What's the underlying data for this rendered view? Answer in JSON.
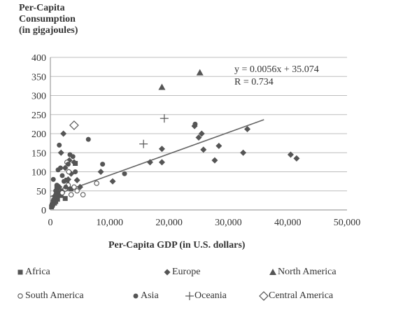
{
  "chart_data": {
    "type": "scatter",
    "title": "",
    "ylabel_lines": [
      "Per-Capita",
      "Consumption",
      "(in gigajoules)"
    ],
    "xlabel": "Per-Capita GDP (in U.S. dollars)",
    "xlim": [
      0,
      50000
    ],
    "ylim": [
      0,
      400
    ],
    "x_ticks": [
      0,
      10000,
      20000,
      30000,
      40000,
      50000
    ],
    "x_tick_labels": [
      "0",
      "10,000",
      "20,000",
      "30,000",
      "40,000",
      "50,000"
    ],
    "y_ticks": [
      0,
      50,
      100,
      150,
      200,
      250,
      300,
      350,
      400
    ],
    "y_tick_labels": [
      "0",
      "50",
      "100",
      "150",
      "200",
      "250",
      "300",
      "350",
      "400"
    ],
    "grid": "horizontal",
    "legend_placement": "bottom",
    "trendline": {
      "equation": "y = 0.0056x + 35.074",
      "r_label": "R = 0.734",
      "slope": 0.0056,
      "intercept": 35.074,
      "x_range": [
        0,
        36000
      ]
    },
    "series": [
      {
        "name": "Africa",
        "marker": "square",
        "points": [
          [
            200,
            8
          ],
          [
            300,
            12
          ],
          [
            400,
            15
          ],
          [
            500,
            20
          ],
          [
            600,
            25
          ],
          [
            700,
            18
          ],
          [
            800,
            30
          ],
          [
            900,
            22
          ],
          [
            1000,
            35
          ],
          [
            1200,
            28
          ],
          [
            1400,
            40
          ],
          [
            1500,
            45
          ],
          [
            1800,
            38
          ],
          [
            2000,
            50
          ],
          [
            2500,
            30
          ],
          [
            3000,
            60
          ],
          [
            3500,
            55
          ],
          [
            4200,
            122
          ],
          [
            2800,
            78
          ],
          [
            1100,
            60
          ]
        ]
      },
      {
        "name": "Europe",
        "marker": "diamond",
        "points": [
          [
            1500,
            60
          ],
          [
            2000,
            45
          ],
          [
            2500,
            110
          ],
          [
            3000,
            80
          ],
          [
            3500,
            95
          ],
          [
            4000,
            125
          ],
          [
            4500,
            78
          ],
          [
            5000,
            60
          ],
          [
            8500,
            100
          ],
          [
            10500,
            75
          ],
          [
            16800,
            125
          ],
          [
            18800,
            125
          ],
          [
            18800,
            160
          ],
          [
            24300,
            220
          ],
          [
            25000,
            190
          ],
          [
            25500,
            200
          ],
          [
            25800,
            158
          ],
          [
            27700,
            130
          ],
          [
            28400,
            168
          ],
          [
            32500,
            150
          ],
          [
            33200,
            212
          ],
          [
            40500,
            145
          ],
          [
            41500,
            135
          ],
          [
            2200,
            200
          ],
          [
            1800,
            150
          ],
          [
            3200,
            130
          ]
        ]
      },
      {
        "name": "North America",
        "marker": "triangle",
        "points": [
          [
            18800,
            322
          ],
          [
            25200,
            360
          ]
        ]
      },
      {
        "name": "South America",
        "marker": "circle-open",
        "points": [
          [
            2000,
            45
          ],
          [
            2500,
            55
          ],
          [
            3000,
            65
          ],
          [
            3500,
            40
          ],
          [
            4000,
            60
          ],
          [
            4500,
            50
          ],
          [
            5500,
            40
          ],
          [
            7800,
            70
          ],
          [
            2800,
            125
          ],
          [
            3100,
            100
          ]
        ]
      },
      {
        "name": "Asia",
        "marker": "circle-filled",
        "points": [
          [
            300,
            15
          ],
          [
            500,
            25
          ],
          [
            700,
            35
          ],
          [
            900,
            50
          ],
          [
            1100,
            65
          ],
          [
            1300,
            105
          ],
          [
            1500,
            170
          ],
          [
            1700,
            110
          ],
          [
            2000,
            90
          ],
          [
            2300,
            75
          ],
          [
            2600,
            60
          ],
          [
            3000,
            120
          ],
          [
            3300,
            145
          ],
          [
            3800,
            140
          ],
          [
            4200,
            100
          ],
          [
            6400,
            185
          ],
          [
            8800,
            120
          ],
          [
            12500,
            95
          ],
          [
            24400,
            225
          ],
          [
            500,
            80
          ],
          [
            900,
            40
          ],
          [
            1200,
            55
          ]
        ]
      },
      {
        "name": "Oceania",
        "marker": "plus",
        "points": [
          [
            15700,
            173
          ],
          [
            19200,
            240
          ]
        ]
      },
      {
        "name": "Central America",
        "marker": "diamond-open",
        "points": [
          [
            4000,
            222
          ]
        ]
      }
    ]
  }
}
